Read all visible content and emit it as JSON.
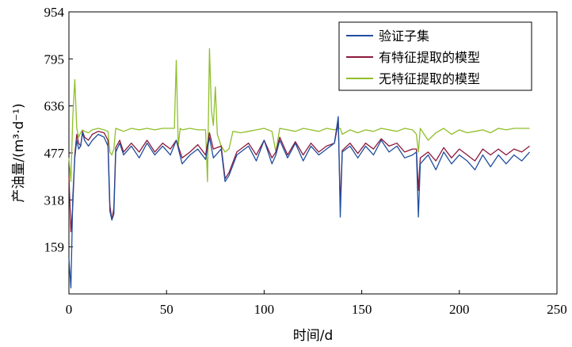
{
  "chart_data": {
    "type": "line",
    "title": "",
    "xlabel": "时间/d",
    "ylabel": "产油量/(m³·d⁻¹)",
    "xlim": [
      0,
      250
    ],
    "ylim": [
      0,
      954
    ],
    "xticks": [
      "0",
      "50",
      "100",
      "150",
      "200",
      "250"
    ],
    "yticks": [
      "159",
      "318",
      "477",
      "636",
      "795",
      "954"
    ],
    "grid": false,
    "legend_position": "top-right",
    "series": [
      {
        "name": "验证子集",
        "color": "#1f4e9e",
        "x": [
          0,
          1,
          2,
          3,
          4,
          5,
          6,
          7,
          8,
          10,
          12,
          15,
          18,
          20,
          21,
          22,
          23,
          24,
          26,
          28,
          32,
          36,
          40,
          44,
          48,
          52,
          55,
          58,
          62,
          66,
          70,
          72,
          74,
          78,
          80,
          82,
          86,
          90,
          92,
          96,
          100,
          104,
          106,
          108,
          112,
          116,
          120,
          124,
          128,
          132,
          136,
          138,
          139,
          140,
          144,
          148,
          152,
          156,
          160,
          164,
          168,
          172,
          176,
          178,
          179,
          180,
          184,
          188,
          192,
          196,
          200,
          204,
          208,
          212,
          216,
          220,
          224,
          228,
          232,
          236
        ],
        "values": [
          120,
          20,
          330,
          460,
          520,
          490,
          500,
          545,
          520,
          500,
          520,
          540,
          530,
          500,
          280,
          250,
          270,
          480,
          510,
          470,
          500,
          460,
          510,
          470,
          500,
          470,
          520,
          440,
          470,
          490,
          455,
          530,
          460,
          490,
          380,
          400,
          470,
          490,
          500,
          450,
          520,
          440,
          470,
          520,
          460,
          510,
          450,
          500,
          470,
          490,
          510,
          600,
          260,
          480,
          500,
          460,
          500,
          470,
          520,
          480,
          500,
          460,
          470,
          480,
          260,
          440,
          470,
          420,
          480,
          440,
          470,
          450,
          420,
          470,
          430,
          470,
          440,
          470,
          450,
          480
        ]
      },
      {
        "name": "有特征提取的模型",
        "color": "#8b1a3b",
        "x": [
          0,
          1,
          2,
          3,
          4,
          5,
          6,
          7,
          8,
          10,
          12,
          15,
          18,
          20,
          21,
          22,
          23,
          24,
          26,
          28,
          32,
          36,
          40,
          44,
          48,
          52,
          55,
          58,
          62,
          66,
          70,
          72,
          74,
          78,
          80,
          82,
          86,
          90,
          92,
          96,
          100,
          104,
          106,
          108,
          112,
          116,
          120,
          124,
          128,
          132,
          136,
          138,
          139,
          140,
          144,
          148,
          152,
          156,
          160,
          164,
          168,
          172,
          176,
          178,
          179,
          180,
          184,
          188,
          192,
          196,
          200,
          204,
          208,
          212,
          216,
          220,
          224,
          228,
          232,
          236
        ],
        "values": [
          400,
          210,
          300,
          470,
          540,
          510,
          500,
          550,
          530,
          520,
          540,
          550,
          545,
          520,
          300,
          250,
          290,
          495,
          520,
          480,
          510,
          480,
          520,
          480,
          510,
          490,
          520,
          460,
          480,
          505,
          470,
          545,
          490,
          500,
          390,
          410,
          480,
          500,
          510,
          470,
          520,
          460,
          480,
          530,
          470,
          515,
          470,
          510,
          480,
          500,
          510,
          580,
          300,
          485,
          510,
          475,
          510,
          490,
          525,
          500,
          510,
          480,
          490,
          490,
          350,
          460,
          480,
          450,
          495,
          460,
          490,
          470,
          450,
          490,
          470,
          490,
          470,
          490,
          480,
          500
        ]
      },
      {
        "name": "无特征提取的模型",
        "color": "#8fbf2a",
        "x": [
          0,
          1,
          2,
          3,
          4,
          5,
          6,
          7,
          8,
          10,
          12,
          15,
          18,
          20,
          21,
          22,
          23,
          24,
          26,
          28,
          32,
          36,
          40,
          44,
          48,
          52,
          54,
          55,
          56,
          57,
          58,
          62,
          66,
          70,
          71,
          72,
          73,
          74,
          75,
          76,
          78,
          80,
          82,
          84,
          88,
          92,
          96,
          100,
          104,
          106,
          108,
          112,
          116,
          120,
          124,
          128,
          132,
          136,
          138,
          139,
          140,
          144,
          148,
          152,
          156,
          160,
          164,
          168,
          172,
          176,
          178,
          179,
          180,
          184,
          188,
          192,
          196,
          200,
          204,
          208,
          212,
          216,
          220,
          224,
          228,
          232,
          236
        ],
        "values": [
          460,
          380,
          600,
          725,
          560,
          530,
          545,
          555,
          550,
          545,
          555,
          560,
          555,
          550,
          480,
          470,
          490,
          560,
          555,
          550,
          560,
          555,
          560,
          555,
          560,
          560,
          560,
          790,
          500,
          560,
          555,
          560,
          555,
          555,
          380,
          830,
          620,
          570,
          700,
          540,
          500,
          480,
          490,
          550,
          545,
          550,
          555,
          560,
          550,
          480,
          560,
          555,
          550,
          560,
          555,
          550,
          560,
          555,
          560,
          560,
          540,
          555,
          545,
          555,
          550,
          560,
          555,
          550,
          560,
          555,
          540,
          480,
          560,
          520,
          545,
          560,
          540,
          555,
          545,
          550,
          555,
          545,
          560,
          555,
          560,
          560,
          560
        ]
      }
    ]
  }
}
